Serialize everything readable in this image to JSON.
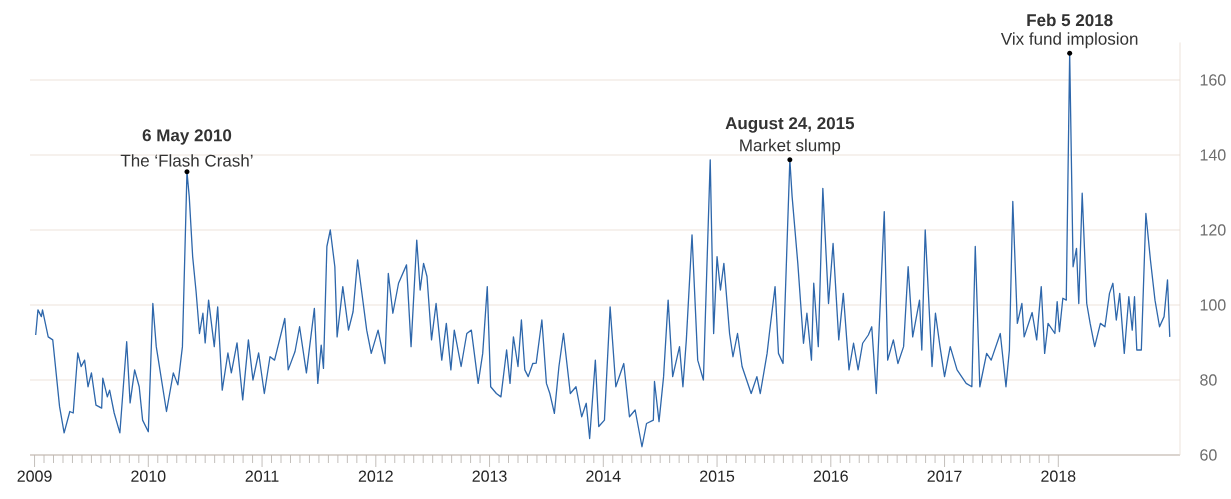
{
  "chart_data": {
    "type": "line",
    "x": [
      2009.01,
      2009.03,
      2009.06,
      2009.07,
      2009.12,
      2009.16,
      2009.22,
      2009.26,
      2009.31,
      2009.34,
      2009.38,
      2009.41,
      2009.44,
      2009.47,
      2009.5,
      2009.54,
      2009.59,
      2009.6,
      2009.64,
      2009.66,
      2009.7,
      2009.75,
      2009.81,
      2009.84,
      2009.88,
      2009.92,
      2009.95,
      2010.0,
      2010.04,
      2010.07,
      2010.16,
      2010.22,
      2010.26,
      2010.3,
      2010.34,
      2010.36,
      2010.39,
      2010.42,
      2010.45,
      2010.48,
      2010.5,
      2010.53,
      2010.58,
      2010.61,
      2010.65,
      2010.7,
      2010.73,
      2010.78,
      2010.83,
      2010.88,
      2010.92,
      2010.97,
      2011.02,
      2011.07,
      2011.11,
      2011.2,
      2011.23,
      2011.29,
      2011.33,
      2011.39,
      2011.46,
      2011.49,
      2011.52,
      2011.54,
      2011.57,
      2011.6,
      2011.64,
      2011.66,
      2011.69,
      2011.71,
      2011.76,
      2011.8,
      2011.84,
      2011.92,
      2011.96,
      2012.02,
      2012.08,
      2012.11,
      2012.15,
      2012.2,
      2012.27,
      2012.31,
      2012.36,
      2012.39,
      2012.42,
      2012.45,
      2012.49,
      2012.53,
      2012.58,
      2012.62,
      2012.66,
      2012.69,
      2012.75,
      2012.8,
      2012.84,
      2012.9,
      2012.94,
      2012.98,
      2013.01,
      2013.06,
      2013.1,
      2013.15,
      2013.18,
      2013.21,
      2013.25,
      2013.28,
      2013.31,
      2013.34,
      2013.38,
      2013.41,
      2013.46,
      2013.5,
      2013.53,
      2013.57,
      2013.61,
      2013.65,
      2013.71,
      2013.76,
      2013.81,
      2013.85,
      2013.88,
      2013.93,
      2013.96,
      2014.01,
      2014.06,
      2014.11,
      2014.18,
      2014.23,
      2014.28,
      2014.34,
      2014.38,
      2014.44,
      2014.45,
      2014.49,
      2014.53,
      2014.57,
      2014.61,
      2014.67,
      2014.7,
      2014.73,
      2014.78,
      2014.83,
      2014.88,
      2014.94,
      2014.97,
      2015.0,
      2015.03,
      2015.06,
      2015.11,
      2015.14,
      2015.18,
      2015.22,
      2015.26,
      2015.3,
      2015.35,
      2015.38,
      2015.44,
      2015.46,
      2015.51,
      2015.54,
      2015.58,
      2015.64,
      2015.66,
      2015.71,
      2015.76,
      2015.79,
      2015.83,
      2015.85,
      2015.89,
      2015.93,
      2015.98,
      2016.02,
      2016.07,
      2016.11,
      2016.16,
      2016.2,
      2016.24,
      2016.28,
      2016.33,
      2016.36,
      2016.4,
      2016.47,
      2016.5,
      2016.55,
      2016.59,
      2016.64,
      2016.68,
      2016.72,
      2016.78,
      2016.8,
      2016.83,
      2016.89,
      2016.92,
      2016.96,
      2017.0,
      2017.05,
      2017.11,
      2017.19,
      2017.24,
      2017.27,
      2017.31,
      2017.37,
      2017.41,
      2017.49,
      2017.54,
      2017.57,
      2017.6,
      2017.64,
      2017.68,
      2017.7,
      2017.77,
      2017.81,
      2017.85,
      2017.88,
      2017.91,
      2017.97,
      2017.99,
      2018.01,
      2018.04,
      2018.07,
      2018.1,
      2018.13,
      2018.16,
      2018.18,
      2018.21,
      2018.25,
      2018.28,
      2018.32,
      2018.37,
      2018.41,
      2018.45,
      2018.48,
      2018.51,
      2018.54,
      2018.58,
      2018.62,
      2018.65,
      2018.67,
      2018.69,
      2018.73,
      2018.77,
      2018.81,
      2018.85,
      2018.89,
      2018.93,
      2018.96,
      2018.98
    ],
    "values": [
      92,
      98.7,
      96.9,
      98.7,
      91.5,
      90.7,
      72.9,
      65.9,
      71.6,
      71.2,
      87.2,
      83.6,
      85.3,
      78.2,
      81.9,
      73.3,
      72.5,
      80.5,
      75.5,
      77.3,
      71.2,
      65.9,
      90.2,
      73.9,
      82.7,
      78.2,
      69.3,
      66.2,
      100.4,
      88.9,
      71.6,
      81.9,
      78.7,
      88.9,
      135.5,
      128.9,
      112.9,
      103.6,
      92.4,
      97.8,
      89.9,
      101.3,
      88.9,
      99.5,
      77.3,
      87.2,
      81.9,
      89.9,
      74.7,
      90.7,
      80,
      87.2,
      76.4,
      86.2,
      85.3,
      96.4,
      82.7,
      87.6,
      94.2,
      81.9,
      99.1,
      79.1,
      89.3,
      83.1,
      115.6,
      120,
      110.2,
      91.5,
      99.5,
      104.9,
      93.3,
      98.2,
      112,
      93.3,
      87.1,
      93.3,
      84.4,
      108.4,
      97.8,
      105.8,
      110.7,
      88.9,
      117.3,
      104,
      111.1,
      107.6,
      90.7,
      100.4,
      85.3,
      95.1,
      82.7,
      93.3,
      83.6,
      92.4,
      93.3,
      79.1,
      87.1,
      104.9,
      78.2,
      76.4,
      75.5,
      88,
      79.1,
      91.5,
      83.6,
      96,
      82.7,
      80.9,
      84.4,
      84.5,
      96,
      79.1,
      76.4,
      71.1,
      83.6,
      92.4,
      76.4,
      78.2,
      70.2,
      73.8,
      64.4,
      85.3,
      67.6,
      69.3,
      99.5,
      78.2,
      84.4,
      70.2,
      72,
      62.2,
      68.4,
      69.3,
      79.6,
      68.9,
      80.9,
      101.3,
      80.9,
      88.9,
      78.2,
      90.7,
      118.7,
      85.3,
      80,
      138.7,
      92.4,
      112.9,
      104,
      111.1,
      92.4,
      86.2,
      92.4,
      83.6,
      80,
      76.4,
      80.9,
      76.4,
      87.1,
      92.4,
      104.9,
      87.1,
      84.4,
      138.7,
      128.9,
      111.1,
      89.8,
      97.8,
      85.3,
      105.8,
      88.9,
      131.1,
      100.4,
      116.4,
      90.7,
      103.1,
      82.7,
      89.8,
      82.7,
      89.8,
      92,
      94.2,
      76.4,
      124.9,
      85.3,
      90.7,
      84.4,
      88.9,
      110.2,
      91.5,
      101.3,
      88,
      120,
      83.6,
      97.8,
      88.9,
      80.9,
      88.9,
      82.7,
      79.1,
      78.2,
      115.6,
      78.2,
      87.1,
      85.3,
      92.4,
      78.2,
      88,
      127.6,
      95.1,
      100.4,
      91.5,
      98,
      90.7,
      104.9,
      87.1,
      95.1,
      92.4,
      100.9,
      92.9,
      101.8,
      101.3,
      167.1,
      110.2,
      115.1,
      100.4,
      129.8,
      100.4,
      95.1,
      88.9,
      95.1,
      94.2,
      103.1,
      105.8,
      96,
      103.1,
      87.1,
      102.2,
      93.3,
      102.2,
      88,
      88,
      124.4,
      112,
      101.3,
      94.2,
      96.9,
      106.7,
      91.5
    ],
    "color": "#2e67ab",
    "xlim": [
      2008.96,
      2019.07
    ],
    "xticks": [
      2009,
      2010,
      2011,
      2012,
      2013,
      2014,
      2015,
      2016,
      2017,
      2018
    ],
    "ylim": [
      60,
      170
    ],
    "yticks": [
      60,
      80,
      100,
      120,
      140,
      160
    ],
    "grid": "y",
    "annotations": [
      {
        "text": "**6 May 2010**",
        "x": 2010.34,
        "y": 135.5
      },
      {
        "text": "The ‘Flash Crash’",
        "x": 2010.34,
        "y": 135.5
      },
      {
        "text": "**August 24, 2015**",
        "x": 2015.64,
        "y": 138.7
      },
      {
        "text": "Market slump",
        "x": 2015.64,
        "y": 138.7
      },
      {
        "text": "**Feb 5 2018**",
        "x": 2018.1,
        "y": 167.1
      },
      {
        "text": "Vix fund implosion",
        "x": 2018.1,
        "y": 167.1
      }
    ]
  }
}
